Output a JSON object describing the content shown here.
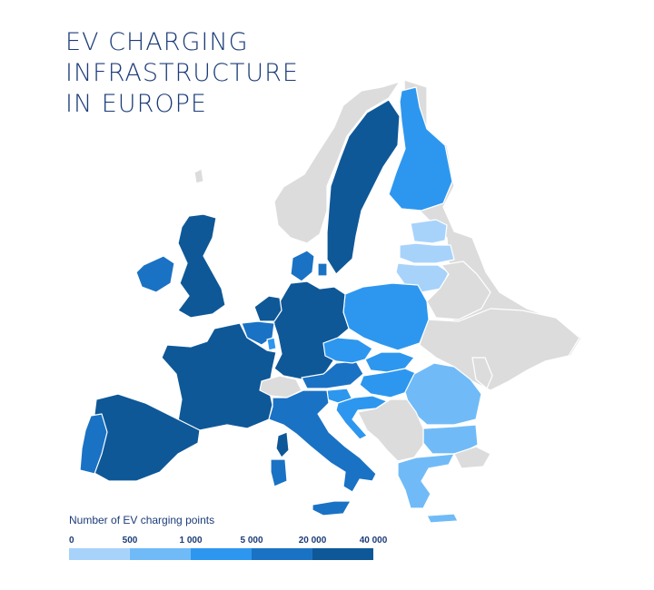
{
  "title": {
    "line1": "EV CHARGING",
    "line2": "INFRASTRUCTURE",
    "line3": "IN EUROPE"
  },
  "legend": {
    "title": "Number of EV charging points",
    "ticks": [
      "0",
      "500",
      "1 000",
      "5 000",
      "20 000",
      "40 000"
    ],
    "colors": [
      "#a7d3fb",
      "#70bbf7",
      "#2d97ef",
      "#1a72c4",
      "#0e5898"
    ]
  },
  "colors": {
    "no_data": "#dcdcdc",
    "title_text": "#1b3c78",
    "borders": "#ffffff"
  },
  "countries": [
    {
      "name": "Norway",
      "class": "no-data"
    },
    {
      "name": "Sweden",
      "class": "20000-40000"
    },
    {
      "name": "Finland",
      "class": "1000-5000"
    },
    {
      "name": "Russia",
      "class": "no-data"
    },
    {
      "name": "Belarus",
      "class": "no-data"
    },
    {
      "name": "Ukraine",
      "class": "no-data"
    },
    {
      "name": "Moldova",
      "class": "no-data"
    },
    {
      "name": "Estonia",
      "class": "0-500"
    },
    {
      "name": "Latvia",
      "class": "0-500"
    },
    {
      "name": "Lithuania",
      "class": "0-500"
    },
    {
      "name": "Poland",
      "class": "1000-5000"
    },
    {
      "name": "Germany",
      "class": "40000+"
    },
    {
      "name": "France",
      "class": "40000+"
    },
    {
      "name": "Netherlands",
      "class": "40000+"
    },
    {
      "name": "Belgium",
      "class": "5000-20000"
    },
    {
      "name": "Luxembourg",
      "class": "1000-5000"
    },
    {
      "name": "Denmark",
      "class": "5000-20000"
    },
    {
      "name": "United Kingdom",
      "class": "20000-40000"
    },
    {
      "name": "Ireland",
      "class": "5000-20000"
    },
    {
      "name": "Spain",
      "class": "20000-40000"
    },
    {
      "name": "Portugal",
      "class": "5000-20000"
    },
    {
      "name": "Italy",
      "class": "5000-20000"
    },
    {
      "name": "Switzerland",
      "class": "no-data"
    },
    {
      "name": "Austria",
      "class": "5000-20000"
    },
    {
      "name": "Czechia",
      "class": "1000-5000"
    },
    {
      "name": "Slovakia",
      "class": "1000-5000"
    },
    {
      "name": "Hungary",
      "class": "1000-5000"
    },
    {
      "name": "Slovenia",
      "class": "1000-5000"
    },
    {
      "name": "Croatia",
      "class": "1000-5000"
    },
    {
      "name": "Romania",
      "class": "500-1000"
    },
    {
      "name": "Bulgaria",
      "class": "500-1000"
    },
    {
      "name": "Greece",
      "class": "500-1000"
    },
    {
      "name": "Western Balkans",
      "class": "no-data"
    },
    {
      "name": "Turkey",
      "class": "no-data"
    },
    {
      "name": "Iceland",
      "class": "no-data"
    }
  ]
}
